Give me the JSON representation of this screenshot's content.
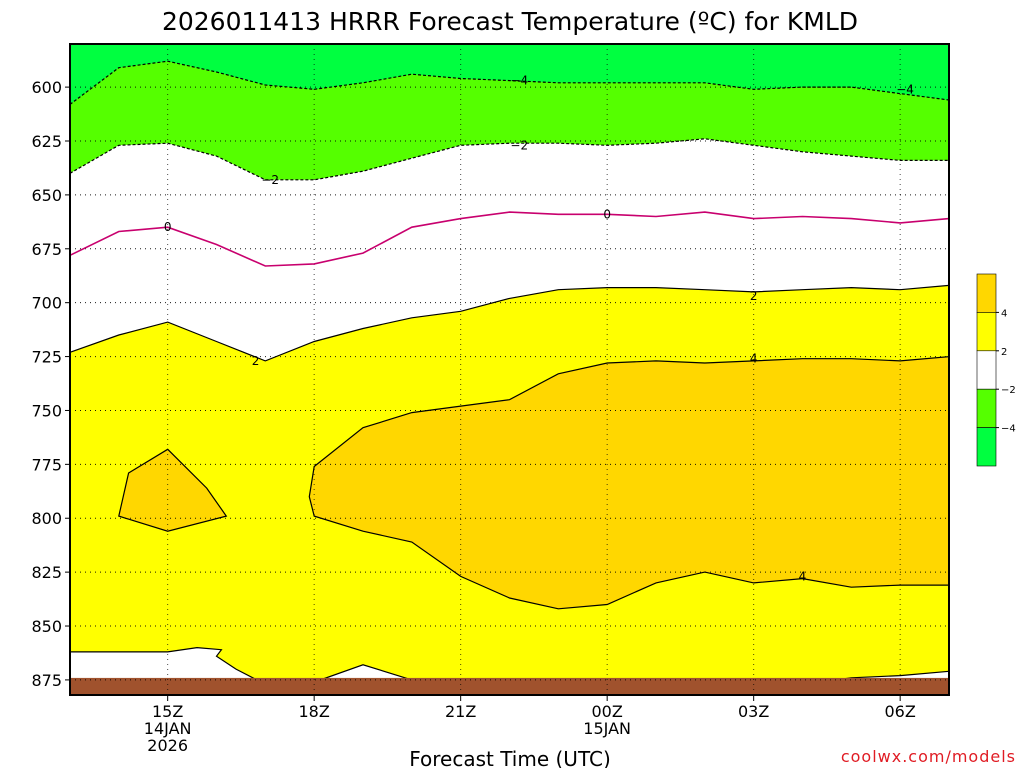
{
  "chart_data": {
    "type": "area",
    "title": "2026011413 HRRR Forecast Temperature (ºC) for KMLD",
    "xlabel": "Forecast Time (UTC)",
    "credit": "coolwx.com/models",
    "x_ticks": [
      {
        "hour": 15,
        "lines": [
          "15Z",
          "14JAN",
          "2026"
        ]
      },
      {
        "hour": 18,
        "lines": [
          "18Z"
        ]
      },
      {
        "hour": 21,
        "lines": [
          "21Z"
        ]
      },
      {
        "hour": 24,
        "lines": [
          "00Z",
          "15JAN"
        ]
      },
      {
        "hour": 27,
        "lines": [
          "03Z"
        ]
      },
      {
        "hour": 30,
        "lines": [
          "06Z"
        ]
      }
    ],
    "y_ticks": [
      600,
      625,
      650,
      675,
      700,
      725,
      750,
      775,
      800,
      825,
      850,
      875
    ],
    "xlim_hours": [
      13,
      31
    ],
    "ylim_hpa": [
      580,
      882
    ],
    "ground_hpa": 875,
    "colors": {
      "lt_minus4": "#00ff40",
      "minus4_to_minus2": "#55ff00",
      "minus2_to_2": "#ffffff",
      "2_to_4": "#ffff00",
      "gt_4": "#ffd700",
      "ground": "#a0522d",
      "zero_line": "#c8006e"
    },
    "colorbar": {
      "labels": [
        "4",
        "2",
        "−2",
        "−4"
      ]
    },
    "contours": [
      {
        "level": -4,
        "color": "#000000",
        "dashed": true,
        "label": "−4",
        "label_points": [
          [
            22.2,
            597
          ],
          [
            30.1,
            601
          ]
        ],
        "points": [
          [
            13,
            608
          ],
          [
            14,
            591
          ],
          [
            15,
            588
          ],
          [
            16,
            593
          ],
          [
            17,
            599
          ],
          [
            18,
            601
          ],
          [
            19,
            598
          ],
          [
            20,
            594
          ],
          [
            21,
            596
          ],
          [
            22,
            597
          ],
          [
            23,
            598
          ],
          [
            24,
            598
          ],
          [
            25,
            598
          ],
          [
            26,
            598
          ],
          [
            27,
            601
          ],
          [
            28,
            600
          ],
          [
            29,
            600
          ],
          [
            30,
            603
          ],
          [
            31,
            606
          ]
        ]
      },
      {
        "level": -2,
        "color": "#000000",
        "dashed": true,
        "label": "−2",
        "label_points": [
          [
            22.2,
            627
          ],
          [
            17.1,
            643
          ]
        ],
        "points": [
          [
            13,
            640
          ],
          [
            14,
            627
          ],
          [
            15,
            626
          ],
          [
            16,
            632
          ],
          [
            17,
            643
          ],
          [
            18,
            643
          ],
          [
            19,
            639
          ],
          [
            20,
            633
          ],
          [
            21,
            627
          ],
          [
            22,
            626
          ],
          [
            23,
            626
          ],
          [
            24,
            627
          ],
          [
            25,
            626
          ],
          [
            26,
            624
          ],
          [
            27,
            627
          ],
          [
            28,
            630
          ],
          [
            29,
            632
          ],
          [
            30,
            634
          ],
          [
            31,
            634
          ]
        ]
      },
      {
        "level": 0,
        "color": "#c8006e",
        "dashed": false,
        "label": "0",
        "label_points": [
          [
            15.0,
            665
          ],
          [
            24.0,
            659
          ]
        ],
        "points": [
          [
            13,
            678
          ],
          [
            14,
            667
          ],
          [
            15,
            665
          ],
          [
            16,
            673
          ],
          [
            17,
            683
          ],
          [
            18,
            682
          ],
          [
            19,
            677
          ],
          [
            20,
            665
          ],
          [
            21,
            661
          ],
          [
            22,
            658
          ],
          [
            23,
            659
          ],
          [
            24,
            659
          ],
          [
            25,
            660
          ],
          [
            26,
            658
          ],
          [
            27,
            661
          ],
          [
            28,
            660
          ],
          [
            29,
            661
          ],
          [
            30,
            663
          ],
          [
            31,
            661
          ]
        ]
      },
      {
        "level": 2,
        "color": "#000000",
        "dashed": false,
        "label": "2",
        "label_points": [
          [
            16.8,
            727
          ],
          [
            27.0,
            697
          ]
        ],
        "points": [
          [
            13,
            723
          ],
          [
            14,
            715
          ],
          [
            15,
            709
          ],
          [
            16,
            718
          ],
          [
            17,
            727
          ],
          [
            18,
            718
          ],
          [
            19,
            712
          ],
          [
            20,
            707
          ],
          [
            21,
            704
          ],
          [
            22,
            698
          ],
          [
            23,
            694
          ],
          [
            24,
            693
          ],
          [
            25,
            693
          ],
          [
            26,
            694
          ],
          [
            27,
            695
          ],
          [
            28,
            694
          ],
          [
            29,
            693
          ],
          [
            30,
            694
          ],
          [
            31,
            692
          ]
        ]
      },
      {
        "level": 4,
        "color": "#000000",
        "dashed": false,
        "label": "4",
        "label_points": [
          [
            27.0,
            726
          ],
          [
            28.0,
            827
          ]
        ],
        "closed": true,
        "points": [
          [
            18,
            776
          ],
          [
            19,
            758
          ],
          [
            20,
            751
          ],
          [
            21,
            748
          ],
          [
            22,
            745
          ],
          [
            23,
            733
          ],
          [
            24,
            728
          ],
          [
            25,
            727
          ],
          [
            26,
            728
          ],
          [
            27,
            727
          ],
          [
            28,
            726
          ],
          [
            29,
            726
          ],
          [
            30,
            727
          ],
          [
            31,
            725
          ],
          [
            31,
            831
          ],
          [
            30,
            831
          ],
          [
            29,
            832
          ],
          [
            28,
            828
          ],
          [
            27,
            830
          ],
          [
            26,
            825
          ],
          [
            25,
            830
          ],
          [
            24,
            840
          ],
          [
            23,
            842
          ],
          [
            22,
            837
          ],
          [
            21,
            827
          ],
          [
            20,
            811
          ],
          [
            19,
            806
          ],
          [
            18,
            799
          ],
          [
            17.9,
            790
          ]
        ]
      },
      {
        "level": 4,
        "color": "#000000",
        "dashed": false,
        "label": "",
        "label_points": [],
        "closed": true,
        "points": [
          [
            14.2,
            779
          ],
          [
            15,
            768
          ],
          [
            15.8,
            786
          ],
          [
            16.2,
            799
          ],
          [
            15,
            806
          ],
          [
            14,
            799
          ]
        ]
      }
    ],
    "lower_white_region": {
      "points": [
        [
          13,
          862
        ],
        [
          14,
          862
        ],
        [
          15,
          862
        ],
        [
          15.6,
          860
        ],
        [
          16.1,
          861
        ],
        [
          16.0,
          864
        ],
        [
          16.4,
          870
        ],
        [
          17,
          877
        ],
        [
          18,
          876
        ],
        [
          19,
          868
        ],
        [
          20,
          875
        ],
        [
          21,
          879
        ],
        [
          22,
          879
        ],
        [
          23,
          879
        ],
        [
          24,
          880
        ],
        [
          25,
          879
        ],
        [
          26,
          879
        ],
        [
          27,
          878
        ],
        [
          28,
          877
        ],
        [
          29,
          874
        ],
        [
          30,
          873
        ],
        [
          31,
          871
        ]
      ]
    }
  }
}
